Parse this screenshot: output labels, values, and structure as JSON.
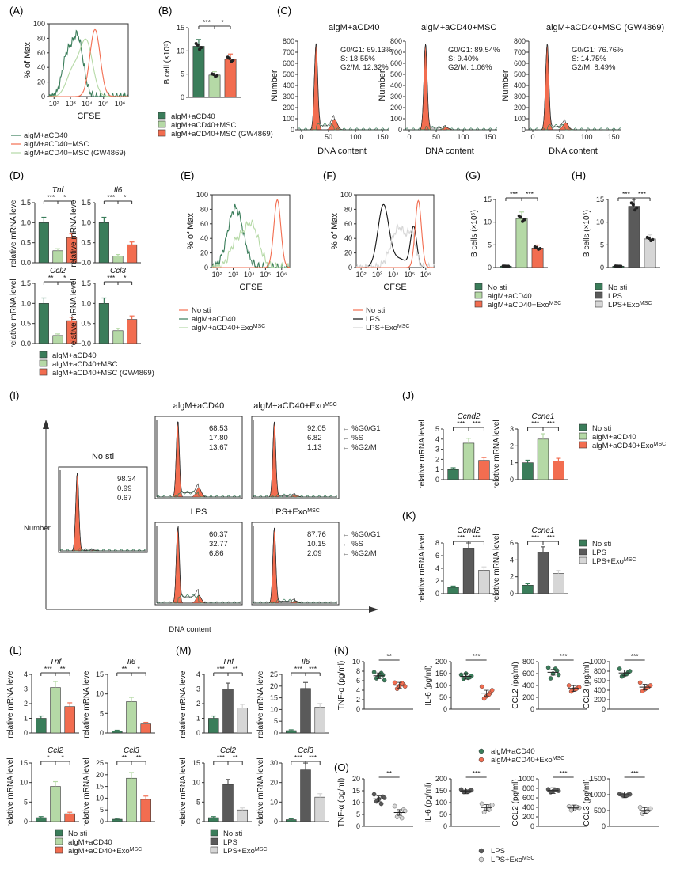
{
  "colors": {
    "green": "#3a7d5a",
    "lightgreen": "#b5d9a6",
    "orange": "#f26d50",
    "black": "#111111",
    "darkgray": "#5a5a5a",
    "lightgray": "#d6d6d6"
  },
  "labels": {
    "A": "(A)",
    "B": "(B)",
    "C": "(C)",
    "D": "(D)",
    "E": "(E)",
    "F": "(F)",
    "G": "(G)",
    "H": "(H)",
    "I": "(I)",
    "J": "(J)",
    "K": "(K)",
    "L": "(L)",
    "M": "(M)",
    "N": "(N)",
    "O": "(O)"
  },
  "common": {
    "pct_max": "% of Max",
    "cfse": "CFSE",
    "rel_mrna": "relative mRNA level",
    "number": "Number",
    "dna_content": "DNA content",
    "sig3": "***",
    "sig2": "**",
    "sig1": "*",
    "log_ticks": [
      "10²",
      "10³",
      "10⁴",
      "10⁵",
      "10⁶"
    ],
    "pct_ticks": [
      "0",
      "20",
      "40",
      "60",
      "80",
      "100"
    ]
  },
  "legends": {
    "msc": [
      "algM+aCD40",
      "algM+aCD40+MSC",
      "algM+aCD40+MSC (GW4869)"
    ],
    "exo": [
      "No sti",
      "algM+aCD40",
      "algM+aCD40+ExoMSC"
    ],
    "lps": [
      "No sti",
      "LPS",
      "LPS+ExoMSC"
    ],
    "no_lps": [
      "LPS",
      "LPS+ExoMSC"
    ],
    "no_acd": [
      "algM+aCD40",
      "algM+aCD40+ExoMSC"
    ],
    "gw_short": "algM+aCD40+MSC (GW4869)"
  },
  "panelA": {
    "xlabel": "CFSE",
    "xticks": [
      "10²",
      "10³",
      "10⁴",
      "10⁵",
      "10⁶"
    ]
  },
  "panelB": {
    "ylabel": "B cell (×10⁵)",
    "yticks": [
      "0",
      "5",
      "10",
      "15"
    ],
    "sig": [
      "***",
      "*"
    ]
  },
  "panelC": {
    "titles": [
      "algM+aCD40",
      "algM+aCD40+MSC",
      "algM+aCD40+MSC (GW4869)"
    ],
    "stats": [
      [
        "G0/G1: 69.13%",
        "S: 18.55%",
        "G2/M: 12.32%"
      ],
      [
        "G0/G1: 89.54%",
        "S: 9.40%",
        "G2/M: 1.06%"
      ],
      [
        "G0/G1: 76.76%",
        "S: 14.75%",
        "G2/M: 8.49%"
      ]
    ],
    "yticks": [
      "0",
      "100",
      "200",
      "300",
      "400",
      "500",
      "600",
      "700",
      "800"
    ],
    "xticks": [
      "0",
      "50",
      "100",
      "150"
    ]
  },
  "panelD": {
    "genes": [
      "Tnf",
      "Il6",
      "Ccl2",
      "Ccl3"
    ],
    "yticks": [
      "0.0",
      "0.5",
      "1.0",
      "1.5"
    ],
    "sig": [
      [
        "***",
        "*"
      ],
      [
        "***",
        "*"
      ],
      [
        "**",
        "*"
      ],
      [
        "***",
        "*"
      ]
    ]
  },
  "panelG": {
    "ylabel": "B cells (×10⁵)",
    "yticks": [
      "0",
      "5",
      "10",
      "15"
    ],
    "sig": [
      "***",
      "***"
    ]
  },
  "panelH": {
    "ylabel": "B cells (×10⁵)",
    "yticks": [
      "0",
      "5",
      "10",
      "15"
    ],
    "sig": [
      "***",
      "***"
    ]
  },
  "panelI": {
    "titles": [
      "No sti",
      "algM+aCD40",
      "algM+aCD40+ExoMSC",
      "LPS",
      "LPS+ExoMSC"
    ],
    "values": [
      [
        "98.34",
        "0.99",
        "0.67"
      ],
      [
        "68.53",
        "17.80",
        "13.67"
      ],
      [
        "92.05",
        "6.82",
        "1.13"
      ],
      [
        "60.37",
        "32.77",
        "6.86"
      ],
      [
        "87.76",
        "10.15",
        "2.09"
      ]
    ],
    "arrow_labels": [
      "← %G0/G1",
      "← %S",
      "← %G2/M"
    ],
    "ylabel": "Number",
    "xlabel": "DNA content"
  },
  "panelJ": {
    "genes": [
      "Ccnd2",
      "Ccne1"
    ],
    "yticks1": [
      "0",
      "1",
      "2",
      "3",
      "4",
      "5"
    ],
    "yticks2": [
      "0",
      "1",
      "2",
      "3"
    ]
  },
  "panelK": {
    "genes": [
      "Ccnd2",
      "Ccne1"
    ],
    "yticks1": [
      "0",
      "2",
      "4",
      "6",
      "8"
    ],
    "yticks2": [
      "0",
      "2",
      "4",
      "6"
    ]
  },
  "panelL": {
    "genes": [
      "Tnf",
      "Il6",
      "Ccl2",
      "Ccl3"
    ],
    "yticks": [
      [
        "0",
        "1",
        "2",
        "3",
        "4"
      ],
      [
        "0",
        "5",
        "10",
        "15"
      ],
      [
        "0",
        "5",
        "10",
        "15"
      ],
      [
        "0",
        "5",
        "10",
        "15",
        "20",
        "25"
      ]
    ],
    "sig": [
      [
        "***",
        "**"
      ],
      [
        "**",
        "*"
      ],
      [
        "*",
        "*"
      ],
      [
        "**",
        "**"
      ]
    ]
  },
  "panelM": {
    "genes": [
      "Tnf",
      "Il6",
      "Ccl2",
      "Ccl3"
    ],
    "yticks": [
      [
        "0",
        "1",
        "2",
        "3",
        "4"
      ],
      [
        "0",
        "5",
        "10",
        "15",
        "20",
        "25"
      ],
      [
        "0",
        "5",
        "10",
        "15"
      ],
      [
        "0",
        "10",
        "20",
        "30"
      ]
    ],
    "sig": [
      [
        "***",
        "**"
      ],
      [
        "***",
        "***"
      ],
      [
        "***",
        "**"
      ],
      [
        "***",
        "***"
      ]
    ]
  },
  "panelN": {
    "ylabels": [
      "TNF-α (pg/ml)",
      "IL-6 (pg/ml)",
      "CCL2 (pg/ml)",
      "CCL3 (pg/ml)"
    ],
    "yticks": [
      [
        "0",
        "2",
        "4",
        "6",
        "8",
        "10"
      ],
      [
        "0",
        "50",
        "100",
        "150",
        "200"
      ],
      [
        "0",
        "200",
        "400",
        "600",
        "800"
      ],
      [
        "0",
        "200",
        "400",
        "600",
        "800",
        "1000"
      ]
    ],
    "sig": [
      "**",
      "***",
      "***",
      "***"
    ]
  },
  "panelO": {
    "ylabels": [
      "TNF-α (pg/ml)",
      "IL-6 (pg/ml)",
      "CCL2 (pg/ml)",
      "CCL3 (pg/ml)"
    ],
    "yticks": [
      [
        "0",
        "5",
        "10",
        "15",
        "20"
      ],
      [
        "0",
        "50",
        "100",
        "150",
        "200"
      ],
      [
        "0",
        "200",
        "400",
        "600",
        "800",
        "1000"
      ],
      [
        "0",
        "500",
        "1000",
        "1500"
      ]
    ],
    "sig": [
      "**",
      "***",
      "***",
      "***"
    ]
  },
  "chart_data": [
    {
      "type": "bar",
      "title": "(B)",
      "ylabel": "B cell (×10⁵)",
      "ylim": [
        0,
        15
      ],
      "categories": [
        "algM+aCD40",
        "algM+aCD40+MSC",
        "algM+aCD40+MSC (GW4869)"
      ],
      "values": [
        11,
        4.8,
        8.2
      ]
    },
    {
      "type": "bar",
      "title": "(D) Tnf",
      "ylabel": "relative mRNA level",
      "ylim": [
        0,
        1.5
      ],
      "categories": [
        "algM+aCD40",
        "algM+aCD40+MSC",
        "algM+aCD40+MSC (GW4869)"
      ],
      "values": [
        1.0,
        0.3,
        0.63
      ]
    },
    {
      "type": "bar",
      "title": "(D) Il6",
      "ylim": [
        0,
        1.5
      ],
      "categories": [
        "algM+aCD40",
        "algM+aCD40+MSC",
        "algM+aCD40+MSC (GW4869)"
      ],
      "values": [
        1.0,
        0.17,
        0.45
      ]
    },
    {
      "type": "bar",
      "title": "(D) Ccl2",
      "ylim": [
        0,
        1.5
      ],
      "categories": [
        "algM+aCD40",
        "algM+aCD40+MSC",
        "algM+aCD40+MSC (GW4869)"
      ],
      "values": [
        1.0,
        0.2,
        0.57
      ]
    },
    {
      "type": "bar",
      "title": "(D) Ccl3",
      "ylim": [
        0,
        1.5
      ],
      "categories": [
        "algM+aCD40",
        "algM+aCD40+MSC",
        "algM+aCD40+MSC (GW4869)"
      ],
      "values": [
        1.0,
        0.32,
        0.6
      ]
    },
    {
      "type": "bar",
      "title": "(G)",
      "ylabel": "B cells (×10⁵)",
      "ylim": [
        0,
        15
      ],
      "categories": [
        "No sti",
        "algM+aCD40",
        "algM+aCD40+ExoMSC"
      ],
      "values": [
        0.3,
        10.8,
        4.3
      ]
    },
    {
      "type": "bar",
      "title": "(H)",
      "ylabel": "B cells (×10⁵)",
      "ylim": [
        0,
        15
      ],
      "categories": [
        "No sti",
        "LPS",
        "LPS+ExoMSC"
      ],
      "values": [
        0.3,
        13.5,
        6.3
      ]
    },
    {
      "type": "bar",
      "title": "(J) Ccnd2",
      "ylim": [
        0,
        5
      ],
      "categories": [
        "No sti",
        "algM+aCD40",
        "algM+aCD40+ExoMSC"
      ],
      "values": [
        1.0,
        3.6,
        1.9
      ]
    },
    {
      "type": "bar",
      "title": "(J) Ccne1",
      "ylim": [
        0,
        3
      ],
      "categories": [
        "No sti",
        "algM+aCD40",
        "algM+aCD40+ExoMSC"
      ],
      "values": [
        1.0,
        2.4,
        1.1
      ]
    },
    {
      "type": "bar",
      "title": "(K) Ccnd2",
      "ylim": [
        0,
        8
      ],
      "categories": [
        "No sti",
        "LPS",
        "LPS+ExoMSC"
      ],
      "values": [
        1.0,
        7.2,
        3.7
      ]
    },
    {
      "type": "bar",
      "title": "(K) Ccne1",
      "ylim": [
        0,
        6
      ],
      "categories": [
        "No sti",
        "LPS",
        "LPS+ExoMSC"
      ],
      "values": [
        1.0,
        4.9,
        2.4
      ]
    },
    {
      "type": "bar",
      "title": "(L) Tnf",
      "ylim": [
        0,
        4
      ],
      "categories": [
        "No sti",
        "algM+aCD40",
        "algM+aCD40+ExoMSC"
      ],
      "values": [
        1.0,
        3.1,
        1.8
      ]
    },
    {
      "type": "bar",
      "title": "(L) Il6",
      "ylim": [
        0,
        15
      ],
      "categories": [
        "No sti",
        "algM+aCD40",
        "algM+aCD40+ExoMSC"
      ],
      "values": [
        0.5,
        8.0,
        2.3
      ]
    },
    {
      "type": "bar",
      "title": "(L) Ccl2",
      "ylim": [
        0,
        15
      ],
      "categories": [
        "No sti",
        "algM+aCD40",
        "algM+aCD40+ExoMSC"
      ],
      "values": [
        1.0,
        9.0,
        2.0
      ]
    },
    {
      "type": "bar",
      "title": "(L) Ccl3",
      "ylim": [
        0,
        25
      ],
      "categories": [
        "No sti",
        "algM+aCD40",
        "algM+aCD40+ExoMSC"
      ],
      "values": [
        1.0,
        18.5,
        9.5
      ]
    },
    {
      "type": "bar",
      "title": "(M) Tnf",
      "ylim": [
        0,
        4
      ],
      "categories": [
        "No sti",
        "LPS",
        "LPS+ExoMSC"
      ],
      "values": [
        1.0,
        3.0,
        1.7
      ]
    },
    {
      "type": "bar",
      "title": "(M) Il6",
      "ylim": [
        0,
        25
      ],
      "categories": [
        "No sti",
        "LPS",
        "LPS+ExoMSC"
      ],
      "values": [
        1.0,
        19.0,
        11.0
      ]
    },
    {
      "type": "bar",
      "title": "(M) Ccl2",
      "ylim": [
        0,
        15
      ],
      "categories": [
        "No sti",
        "LPS",
        "LPS+ExoMSC"
      ],
      "values": [
        1.0,
        9.5,
        3.0
      ]
    },
    {
      "type": "bar",
      "title": "(M) Ccl3",
      "ylim": [
        0,
        30
      ],
      "categories": [
        "No sti",
        "LPS",
        "LPS+ExoMSC"
      ],
      "values": [
        1.0,
        26.5,
        12.5
      ]
    },
    {
      "type": "scatter",
      "title": "(N) TNF-α",
      "ylim": [
        0,
        10
      ],
      "series": [
        {
          "name": "algM+aCD40",
          "values": [
            7.8,
            7.2,
            7.0,
            6.5,
            6.1,
            7.6
          ]
        },
        {
          "name": "algM+aCD40+ExoMSC",
          "values": [
            5.6,
            5.2,
            4.9,
            4.3,
            4.8,
            5.5
          ]
        }
      ]
    },
    {
      "type": "scatter",
      "title": "(N) IL-6",
      "ylim": [
        0,
        200
      ],
      "series": [
        {
          "name": "algM+aCD40",
          "values": [
            145,
            135,
            150,
            128,
            140,
            132
          ]
        },
        {
          "name": "algM+aCD40+ExoMSC",
          "values": [
            95,
            70,
            55,
            45,
            80,
            62
          ]
        }
      ]
    },
    {
      "type": "scatter",
      "title": "(N) CCL2",
      "ylim": [
        0,
        800
      ],
      "series": [
        {
          "name": "algM+aCD40",
          "values": [
            700,
            650,
            600,
            520,
            580,
            680
          ]
        },
        {
          "name": "algM+aCD40+ExoMSC",
          "values": [
            400,
            360,
            330,
            300,
            370,
            340
          ]
        }
      ]
    },
    {
      "type": "scatter",
      "title": "(N) CCL3",
      "ylim": [
        0,
        1000
      ],
      "series": [
        {
          "name": "algM+aCD40",
          "values": [
            850,
            780,
            720,
            690,
            800,
            740
          ]
        },
        {
          "name": "algM+aCD40+ExoMSC",
          "values": [
            560,
            480,
            420,
            380,
            500,
            450
          ]
        }
      ]
    },
    {
      "type": "scatter",
      "title": "(O) TNF-α",
      "ylim": [
        0,
        20
      ],
      "series": [
        {
          "name": "LPS",
          "values": [
            13.5,
            12.5,
            11.5,
            10.5,
            12.0,
            9.5
          ]
        },
        {
          "name": "LPS+ExoMSC",
          "values": [
            8.5,
            7.0,
            5.5,
            4.0,
            6.5,
            3.5
          ]
        }
      ]
    },
    {
      "type": "scatter",
      "title": "(O) IL-6",
      "ylim": [
        0,
        200
      ],
      "series": [
        {
          "name": "LPS",
          "values": [
            155,
            150,
            148,
            145,
            152,
            146
          ]
        },
        {
          "name": "LPS+ExoMSC",
          "values": [
            95,
            85,
            75,
            60,
            90,
            70
          ]
        }
      ]
    },
    {
      "type": "scatter",
      "title": "(O) CCL2",
      "ylim": [
        0,
        1000
      ],
      "series": [
        {
          "name": "LPS",
          "values": [
            780,
            760,
            740,
            720,
            750,
            770
          ]
        },
        {
          "name": "LPS+ExoMSC",
          "values": [
            420,
            400,
            370,
            340,
            390,
            410
          ]
        }
      ]
    },
    {
      "type": "scatter",
      "title": "(O) CCL3",
      "ylim": [
        0,
        1500
      ],
      "series": [
        {
          "name": "LPS",
          "values": [
            1020,
            1000,
            980,
            990,
            1010,
            970
          ]
        },
        {
          "name": "LPS+ExoMSC",
          "values": [
            600,
            520,
            460,
            400,
            560,
            480
          ]
        }
      ]
    }
  ]
}
